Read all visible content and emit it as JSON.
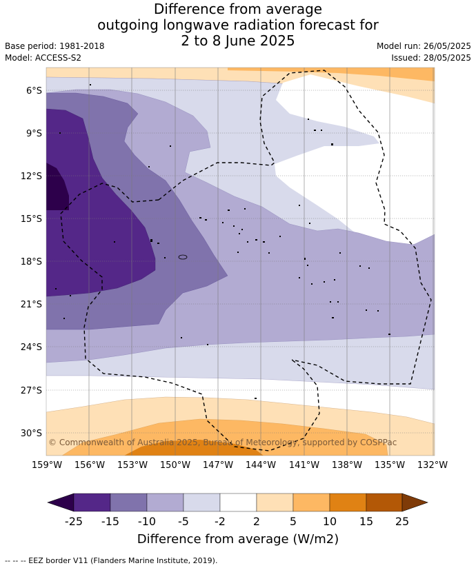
{
  "title": {
    "line1": "Difference from average",
    "line2": "outgoing longwave radiation forecast for",
    "line3": "2 to 8 June 2025"
  },
  "meta": {
    "base_period": "Base period: 1981-2018",
    "model": "Model: ACCESS-S2",
    "model_run": "Model run: 26/05/2025",
    "issued": "Issued: 28/05/2025"
  },
  "map": {
    "lat_labels": [
      "6°S",
      "9°S",
      "12°S",
      "15°S",
      "18°S",
      "21°S",
      "24°S",
      "27°S",
      "30°S"
    ],
    "lon_labels": [
      "159°W",
      "156°W",
      "153°W",
      "150°W",
      "147°W",
      "144°W",
      "141°W",
      "138°W",
      "135°W",
      "132°W"
    ],
    "copyright": "© Commonwealth of Australia 2025, Bureau of Meteorology, supported by COSPPac"
  },
  "colorbar": {
    "ticks": [
      "-25",
      "-15",
      "-10",
      "-5",
      "-2",
      "2",
      "5",
      "10",
      "15",
      "25"
    ],
    "label": "Difference from average (W/m2)",
    "colors": {
      "under": "#2d004b",
      "bins": [
        "#542788",
        "#8073ac",
        "#b2abd2",
        "#d8daeb",
        "#ffffff",
        "#fee0b6",
        "#fdb863",
        "#e08214",
        "#b35806"
      ],
      "over": "#7f3b08"
    }
  },
  "footer": "--  --  -- EEZ border V11 (Flanders Marine Institute, 2019)."
}
